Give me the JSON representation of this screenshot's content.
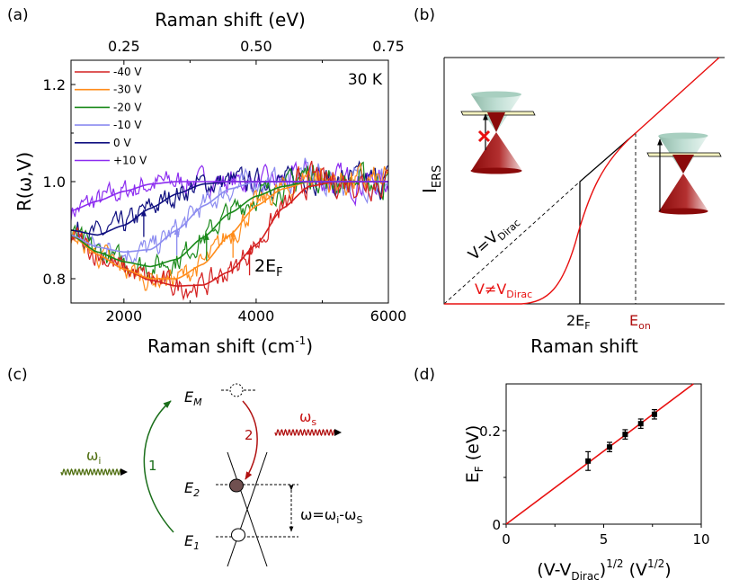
{
  "panels": {
    "a": "(a)",
    "b": "(b)",
    "c": "(c)",
    "d": "(d)"
  },
  "chart_data": [
    {
      "type": "line",
      "panel": "a",
      "title": "",
      "xlabel": "Raman shift (cm",
      "xlabel_sup": "-1",
      "xlabel_end": ")",
      "x2label": "Raman shift (eV)",
      "ylabel": "R(ω,V)",
      "xlim": [
        1200,
        6000
      ],
      "ylim": [
        0.75,
        1.25
      ],
      "x2lim": [
        0.15,
        0.75
      ],
      "xticks": [
        2000,
        4000,
        6000
      ],
      "xtick_labels": [
        "2000",
        "4000",
        "6000"
      ],
      "x2ticks": [
        0.25,
        0.5,
        0.75
      ],
      "x2tick_labels": [
        "0.25",
        "0.50",
        "0.75"
      ],
      "yticks": [
        0.8,
        1.0,
        1.2
      ],
      "ytick_labels": [
        "0.8",
        "1.0",
        "1.2"
      ],
      "annotation_temp": "30 K",
      "annotation_2ef": "2E",
      "annotation_2ef_sub": "F",
      "legend_position": "top-left",
      "fit_x": [
        1200,
        1600,
        2000,
        2400,
        2800,
        3200,
        3600,
        4000,
        4400,
        4800,
        5200,
        5600,
        6000
      ],
      "series": [
        {
          "name": "-40 V",
          "color": "#d42020",
          "fit": [
            0.89,
            0.85,
            0.82,
            0.797,
            0.785,
            0.787,
            0.815,
            0.87,
            0.945,
            0.99,
            1.0,
            1.0,
            1.0
          ],
          "arrow_2ef": 3900
        },
        {
          "name": "-30 V",
          "color": "#ff8c1a",
          "fit": [
            0.89,
            0.85,
            0.82,
            0.8,
            0.8,
            0.83,
            0.89,
            0.95,
            0.985,
            1.0,
            1.0,
            1.0,
            1.0
          ],
          "arrow_2ef": 3650
        },
        {
          "name": "-20 V",
          "color": "#1a8a1a",
          "fit": [
            0.89,
            0.855,
            0.835,
            0.825,
            0.84,
            0.885,
            0.935,
            0.97,
            0.99,
            1.0,
            1.0,
            1.0,
            1.0
          ],
          "arrow_2ef": 3250
        },
        {
          "name": "-10 V",
          "color": "#8c8cf0",
          "fit": [
            0.89,
            0.865,
            0.855,
            0.86,
            0.9,
            0.95,
            0.985,
            1.0,
            1.0,
            1.0,
            1.0,
            1.0,
            1.0
          ],
          "arrow_2ef": 2800
        },
        {
          "name": "0 V",
          "color": "#101080",
          "fit": [
            0.9,
            0.89,
            0.91,
            0.945,
            0.975,
            0.995,
            1.0,
            1.0,
            1.0,
            1.0,
            1.0,
            1.0,
            1.0
          ],
          "arrow_2ef": 2300
        },
        {
          "name": "+10 V",
          "color": "#8c2cf0",
          "fit": [
            0.94,
            0.96,
            0.98,
            0.995,
            1.0,
            1.0,
            1.0,
            1.0,
            1.0,
            1.0,
            1.0,
            1.0,
            1.0
          ],
          "arrow_2ef": null
        }
      ]
    },
    {
      "type": "line",
      "panel": "b",
      "xlabel": "Raman shift",
      "ylabel": "I",
      "ylabel_sub": "ERS",
      "tick_2ef": "2E",
      "tick_2ef_sub": "F",
      "tick_eon": "E",
      "tick_eon_sub": "on",
      "label_dirac": "V=V",
      "label_dirac_sub": "Dirac",
      "label_nondirac": "V≠V",
      "label_nondirac_sub": "Dirac",
      "colors": {
        "dirac": "#000000",
        "nondirac": "#e81010"
      }
    },
    {
      "type": "scatter",
      "panel": "d",
      "xlabel": "(V-V",
      "xlabel_sub": "Dirac",
      "xlabel_sup": "1/2",
      "xlabel_unit": " (V",
      "xlabel_unit_sup": "1/2",
      "xlabel_end": ")",
      "ylabel": "E",
      "ylabel_sub": "F",
      "ylabel_end": " (eV)",
      "xlim": [
        0,
        10
      ],
      "ylim": [
        0,
        0.3
      ],
      "xticks": [
        0,
        5,
        10
      ],
      "xtick_labels": [
        "0",
        "5",
        "10"
      ],
      "yticks": [
        0,
        0.2
      ],
      "ytick_labels": [
        "0",
        "0.2"
      ],
      "points": [
        {
          "x": 4.2,
          "y": 0.135,
          "err": 0.02
        },
        {
          "x": 5.3,
          "y": 0.165,
          "err": 0.01
        },
        {
          "x": 6.1,
          "y": 0.192,
          "err": 0.01
        },
        {
          "x": 6.9,
          "y": 0.215,
          "err": 0.01
        },
        {
          "x": 7.6,
          "y": 0.235,
          "err": 0.01
        }
      ],
      "fit_line": {
        "slope": 0.03125,
        "intercept": 0,
        "color": "#e81010"
      }
    }
  ],
  "diagram_c": {
    "em": "E",
    "em_sub": "M",
    "e2": "E",
    "e2_sub": "2",
    "e1": "E",
    "e1_sub": "1",
    "step1": "1",
    "step2": "2",
    "omega_i": "ω",
    "omega_i_sub": "i",
    "omega_s": "ω",
    "omega_s_sub": "s",
    "relation": "ω=ω",
    "relation_sub1": "i",
    "relation_mid": "-ω",
    "relation_sub2": "S",
    "colors": {
      "green": "#1a6e1a",
      "red": "#b01010",
      "olive": "#4f6e10",
      "electron": "#705050"
    }
  }
}
